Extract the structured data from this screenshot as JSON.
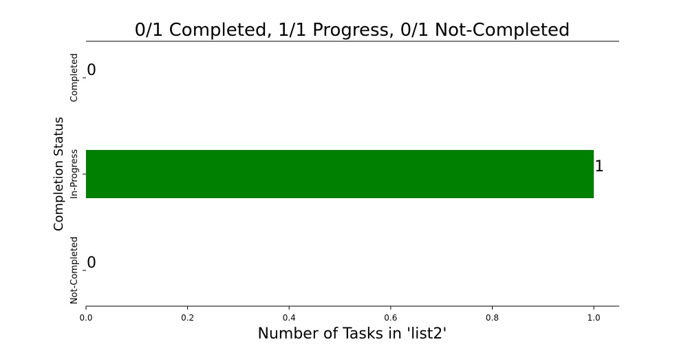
{
  "chart_data": {
    "type": "bar",
    "orientation": "horizontal",
    "title": "0/1 Completed, 1/1 Progress, 0/1 Not-Completed",
    "xlabel": "Number of Tasks in 'list2'",
    "ylabel": "Completion Status",
    "categories": [
      "Completed",
      "In-Progress",
      "Not-Completed"
    ],
    "values": [
      0,
      1,
      0
    ],
    "value_labels": [
      "0",
      "1",
      "0"
    ],
    "xlim": [
      0,
      1.05
    ],
    "xticks": [
      "0.0",
      "0.2",
      "0.4",
      "0.6",
      "0.8",
      "1.0"
    ],
    "grid": false,
    "legend": "none",
    "bar_color": "#008000"
  }
}
